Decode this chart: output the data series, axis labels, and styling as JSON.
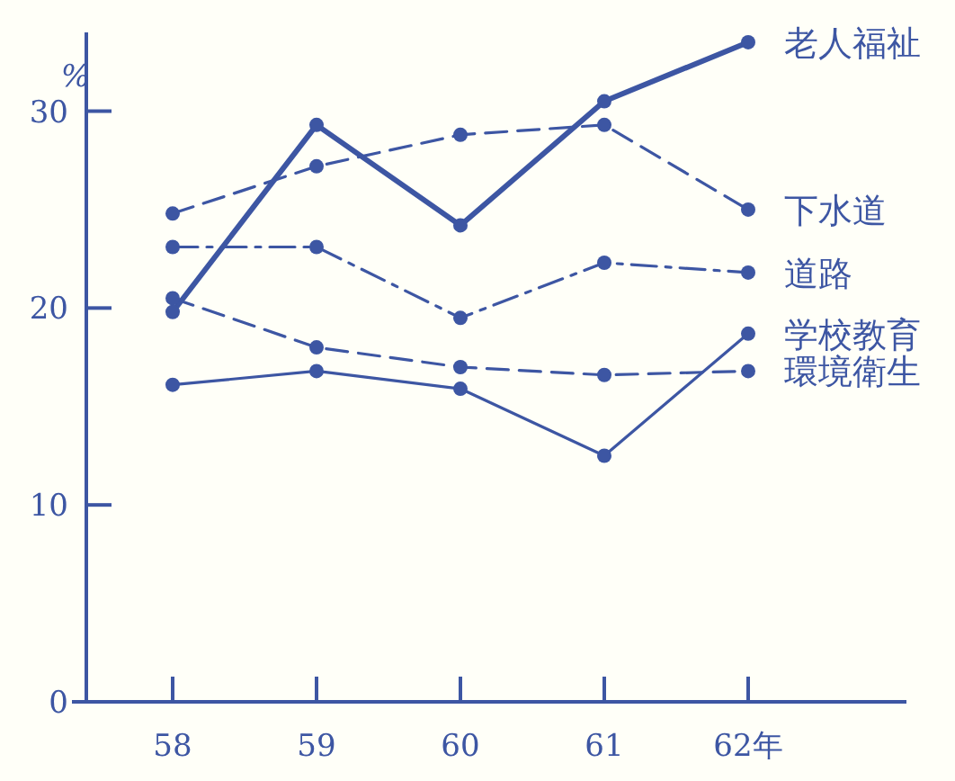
{
  "chart_data": {
    "type": "line",
    "ylabel": "%",
    "categories": [
      "58",
      "59",
      "60",
      "61",
      "62年"
    ],
    "series": [
      {
        "name": "老人福祉",
        "color": "#3d56a3",
        "values": [
          19.8,
          29.3,
          24.2,
          30.5,
          33.5
        ],
        "line_style": "solid"
      },
      {
        "name": "下水道",
        "color": "#3d56a3",
        "values": [
          24.8,
          27.2,
          28.8,
          29.3,
          25.0
        ],
        "line_style": "dashed"
      },
      {
        "name": "道路",
        "color": "#3d56a3",
        "values": [
          23.1,
          23.1,
          19.5,
          22.3,
          21.8
        ],
        "line_style": "dashdot"
      },
      {
        "name": "学校教育",
        "color": "#3d56a3",
        "values": [
          16.1,
          16.8,
          15.9,
          12.5,
          18.7
        ],
        "line_style": "solid"
      },
      {
        "name": "環境衛生",
        "color": "#3d56a3",
        "values": [
          20.5,
          18.0,
          17.0,
          16.6,
          16.8
        ],
        "line_style": "dashed"
      }
    ],
    "ylim": [
      0,
      34
    ],
    "yticks": [
      0,
      10,
      20,
      30
    ],
    "marker": "circle",
    "legend": "right",
    "grid": false
  }
}
